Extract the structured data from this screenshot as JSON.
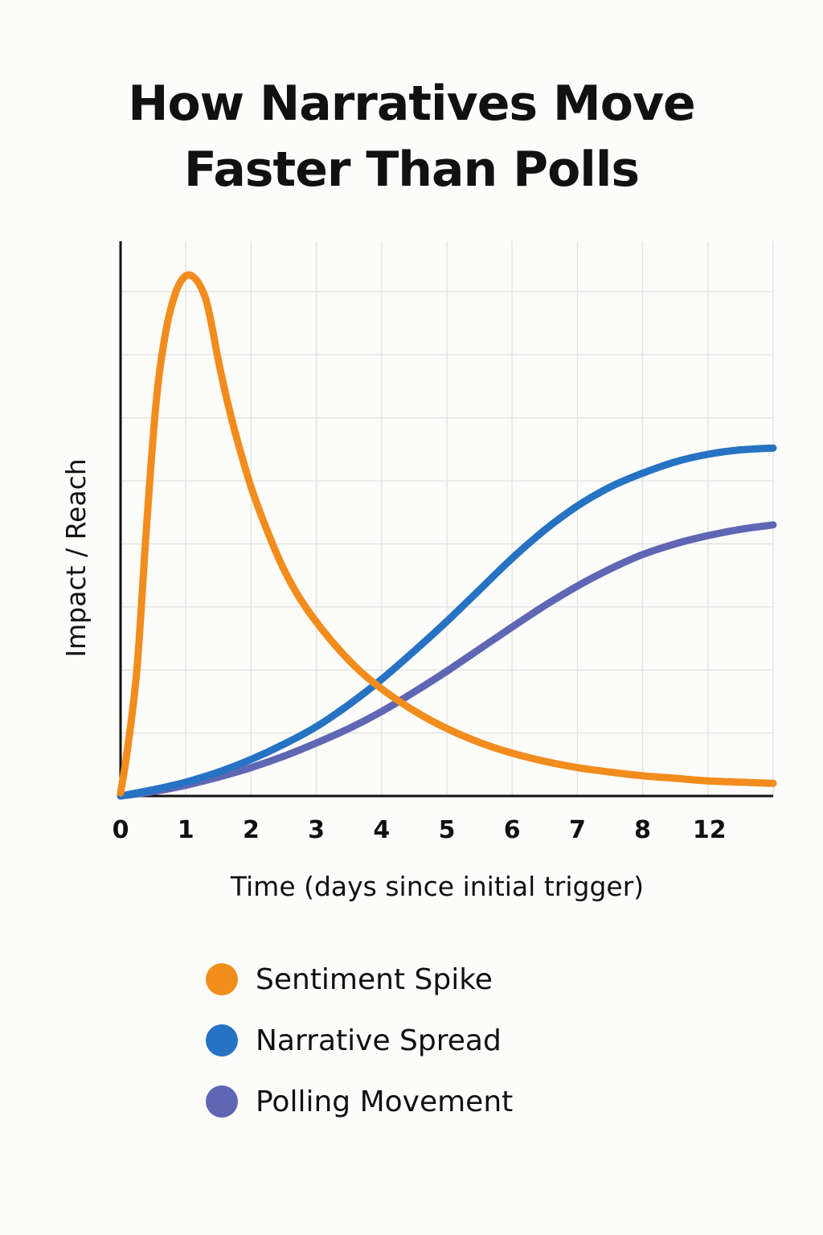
{
  "chart_data": {
    "type": "line",
    "title": "How Narratives Move Faster Than Polls",
    "xlabel": "Time (days since initial trigger)",
    "ylabel": "Impact / Reach",
    "x_tick_labels": [
      "0",
      "1",
      "2",
      "3",
      "4",
      "5",
      "6",
      "7",
      "8",
      "12"
    ],
    "xlim": [
      0,
      10
    ],
    "ylim": [
      0,
      8.8
    ],
    "grid": true,
    "legend_position": "bottom",
    "series": [
      {
        "name": "Sentiment Spike",
        "color": "#f28c1c",
        "x": [
          0,
          0.1,
          0.25,
          0.4,
          0.55,
          0.7,
          0.85,
          1.0,
          1.15,
          1.3,
          1.4,
          1.5,
          1.65,
          1.8,
          2.0,
          2.25,
          2.5,
          2.8,
          3.2,
          3.6,
          4.0,
          4.5,
          5.0,
          5.5,
          6.0,
          6.5,
          7.0,
          7.5,
          8.0,
          8.5,
          9.0,
          9.5,
          10.0
        ],
        "values": [
          0.05,
          0.7,
          2.0,
          4.3,
          6.3,
          7.4,
          8.0,
          8.25,
          8.2,
          7.9,
          7.45,
          6.9,
          6.2,
          5.6,
          4.9,
          4.2,
          3.6,
          3.05,
          2.5,
          2.05,
          1.7,
          1.35,
          1.07,
          0.85,
          0.68,
          0.55,
          0.45,
          0.38,
          0.32,
          0.28,
          0.24,
          0.22,
          0.2
        ]
      },
      {
        "name": "Narrative Spread",
        "color": "#2673c4",
        "x": [
          0,
          0.5,
          1.0,
          1.5,
          2.0,
          2.5,
          3.0,
          3.5,
          4.0,
          4.5,
          5.0,
          5.5,
          6.0,
          6.5,
          7.0,
          7.5,
          8.0,
          8.5,
          9.0,
          9.5,
          10.0
        ],
        "values": [
          0.0,
          0.1,
          0.22,
          0.38,
          0.58,
          0.82,
          1.1,
          1.45,
          1.85,
          2.3,
          2.77,
          3.27,
          3.77,
          4.22,
          4.6,
          4.9,
          5.12,
          5.3,
          5.42,
          5.49,
          5.52
        ]
      },
      {
        "name": "Polling Movement",
        "color": "#5f67b4",
        "x": [
          0,
          0.5,
          1.0,
          1.5,
          2.0,
          2.5,
          3.0,
          3.5,
          4.0,
          4.5,
          5.0,
          5.5,
          6.0,
          6.5,
          7.0,
          7.5,
          8.0,
          8.5,
          9.0,
          9.5,
          10.0
        ],
        "values": [
          0.0,
          0.07,
          0.17,
          0.3,
          0.45,
          0.63,
          0.84,
          1.07,
          1.34,
          1.65,
          1.98,
          2.33,
          2.68,
          3.02,
          3.33,
          3.6,
          3.83,
          4.0,
          4.13,
          4.23,
          4.3
        ]
      }
    ]
  }
}
